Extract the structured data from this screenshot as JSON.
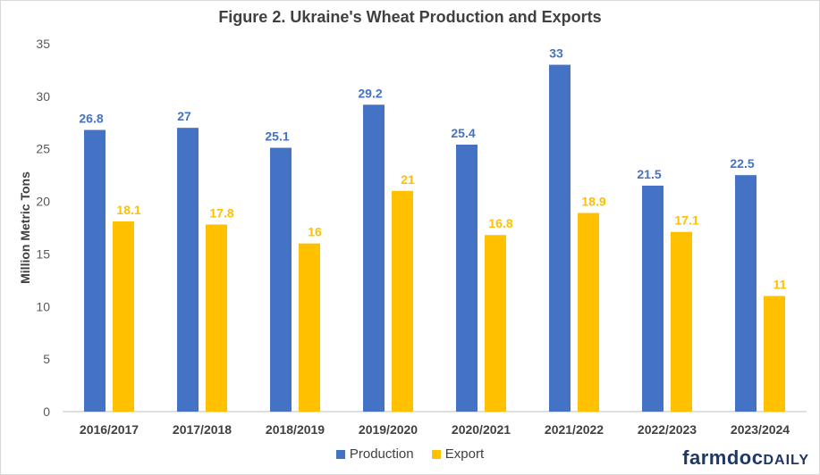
{
  "chart_data": {
    "type": "bar",
    "title": "Figure 2. Ukraine's Wheat Production and Exports",
    "xlabel": "",
    "ylabel": "Million Metric Tons",
    "ylim": [
      0,
      35
    ],
    "yticks": [
      0,
      5,
      10,
      15,
      20,
      25,
      30,
      35
    ],
    "grid": false,
    "legend_position": "bottom",
    "categories": [
      "2016/2017",
      "2017/2018",
      "2018/2019",
      "2019/2020",
      "2020/2021",
      "2021/2022",
      "2022/2023",
      "2023/2024"
    ],
    "series": [
      {
        "name": "Production",
        "color": "#4472c4",
        "values": [
          26.8,
          27,
          25.1,
          29.2,
          25.4,
          33,
          21.5,
          22.5
        ]
      },
      {
        "name": "Export",
        "color": "#ffc000",
        "values": [
          18.1,
          17.8,
          16,
          21,
          16.8,
          18.9,
          17.1,
          11
        ]
      }
    ]
  },
  "branding": {
    "part1": "farmdoc",
    "part2": "DAILY"
  }
}
